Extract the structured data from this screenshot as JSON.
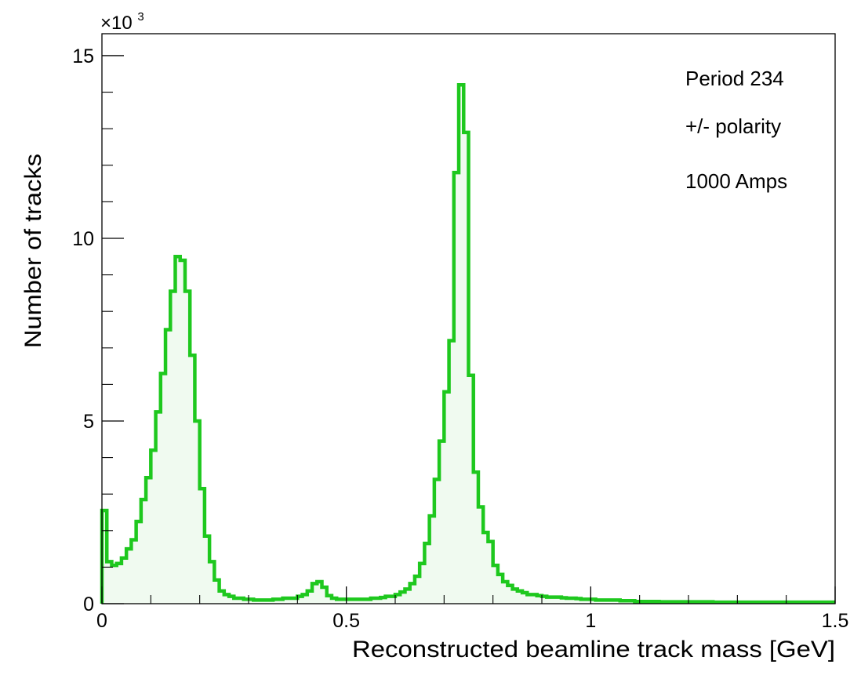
{
  "chart_data": {
    "type": "area",
    "xlabel": "Reconstructed beamline track mass [GeV]",
    "ylabel": "Number of tracks",
    "xlim": [
      0,
      1.5
    ],
    "ylim": [
      0,
      15.6
    ],
    "y_multiplier_base": "×10",
    "y_multiplier_exp": "3",
    "x_ticks": [
      {
        "value": 0,
        "label": "0"
      },
      {
        "value": 0.5,
        "label": "0.5"
      },
      {
        "value": 1,
        "label": "1"
      },
      {
        "value": 1.5,
        "label": "1.5"
      }
    ],
    "y_ticks": [
      {
        "value": 0,
        "label": "0"
      },
      {
        "value": 5,
        "label": "5"
      },
      {
        "value": 10,
        "label": "10"
      },
      {
        "value": 15,
        "label": "15"
      }
    ],
    "annotations": [
      "Period 234",
      "+/- polarity",
      "1000 Amps"
    ],
    "line_color": "#1ec81e",
    "fill_color": "#f0faf0",
    "bin_width": 0.01,
    "series": [
      {
        "bin_low_edges": [
          0.0,
          0.01,
          0.02,
          0.03,
          0.04,
          0.05,
          0.06,
          0.07,
          0.08,
          0.09,
          0.1,
          0.11,
          0.12,
          0.13,
          0.14,
          0.15,
          0.16,
          0.17,
          0.18,
          0.19,
          0.2,
          0.21,
          0.22,
          0.23,
          0.24,
          0.25,
          0.26,
          0.27,
          0.28,
          0.29,
          0.3,
          0.31,
          0.32,
          0.33,
          0.34,
          0.35,
          0.36,
          0.37,
          0.38,
          0.39,
          0.4,
          0.41,
          0.42,
          0.43,
          0.44,
          0.45,
          0.46,
          0.47,
          0.48,
          0.49,
          0.5,
          0.51,
          0.52,
          0.53,
          0.54,
          0.55,
          0.56,
          0.57,
          0.58,
          0.59,
          0.6,
          0.61,
          0.62,
          0.63,
          0.64,
          0.65,
          0.66,
          0.67,
          0.68,
          0.69,
          0.7,
          0.71,
          0.72,
          0.73,
          0.74,
          0.75,
          0.76,
          0.77,
          0.78,
          0.79,
          0.8,
          0.81,
          0.82,
          0.83,
          0.84,
          0.85,
          0.86,
          0.87,
          0.88,
          0.89,
          0.9,
          0.91,
          0.92,
          0.93,
          0.94,
          0.95,
          0.96,
          0.97,
          0.98,
          0.99,
          1.0,
          1.01,
          1.02,
          1.03,
          1.04,
          1.05,
          1.06,
          1.07,
          1.08,
          1.09,
          1.1,
          1.11,
          1.12,
          1.13,
          1.14,
          1.15,
          1.16,
          1.17,
          1.18,
          1.19,
          1.2,
          1.21,
          1.22,
          1.23,
          1.24,
          1.25,
          1.26,
          1.27,
          1.28,
          1.29,
          1.3,
          1.31,
          1.32,
          1.33,
          1.34,
          1.35,
          1.36,
          1.37,
          1.38,
          1.39,
          1.4,
          1.41,
          1.42,
          1.43,
          1.44,
          1.45,
          1.46,
          1.47,
          1.48,
          1.49
        ],
        "values": [
          2.55,
          1.15,
          1.05,
          1.1,
          1.25,
          1.5,
          1.75,
          2.25,
          2.85,
          3.45,
          4.2,
          5.25,
          6.3,
          7.5,
          8.55,
          9.5,
          9.4,
          8.55,
          6.8,
          5.0,
          3.15,
          1.85,
          1.15,
          0.65,
          0.35,
          0.25,
          0.2,
          0.15,
          0.15,
          0.12,
          0.12,
          0.1,
          0.1,
          0.1,
          0.1,
          0.12,
          0.12,
          0.15,
          0.15,
          0.15,
          0.2,
          0.25,
          0.35,
          0.55,
          0.6,
          0.45,
          0.22,
          0.15,
          0.12,
          0.12,
          0.12,
          0.12,
          0.12,
          0.12,
          0.12,
          0.15,
          0.15,
          0.17,
          0.2,
          0.2,
          0.25,
          0.32,
          0.4,
          0.55,
          0.75,
          1.1,
          1.65,
          2.4,
          3.4,
          4.45,
          5.8,
          7.2,
          11.8,
          14.2,
          12.9,
          6.25,
          3.6,
          2.65,
          1.95,
          1.7,
          1.05,
          0.8,
          0.6,
          0.5,
          0.4,
          0.35,
          0.3,
          0.25,
          0.25,
          0.22,
          0.2,
          0.18,
          0.18,
          0.18,
          0.16,
          0.15,
          0.15,
          0.14,
          0.12,
          0.12,
          0.12,
          0.1,
          0.1,
          0.1,
          0.1,
          0.1,
          0.08,
          0.08,
          0.08,
          0.06,
          0.06,
          0.06,
          0.06,
          0.06,
          0.05,
          0.05,
          0.05,
          0.05,
          0.05,
          0.05,
          0.05,
          0.05,
          0.05,
          0.05,
          0.05,
          0.04,
          0.04,
          0.04,
          0.04,
          0.04,
          0.04,
          0.04,
          0.04,
          0.04,
          0.04,
          0.04,
          0.04,
          0.04,
          0.04,
          0.04,
          0.04,
          0.04,
          0.04,
          0.04,
          0.04,
          0.04,
          0.04,
          0.04,
          0.04,
          0.04
        ]
      }
    ]
  }
}
